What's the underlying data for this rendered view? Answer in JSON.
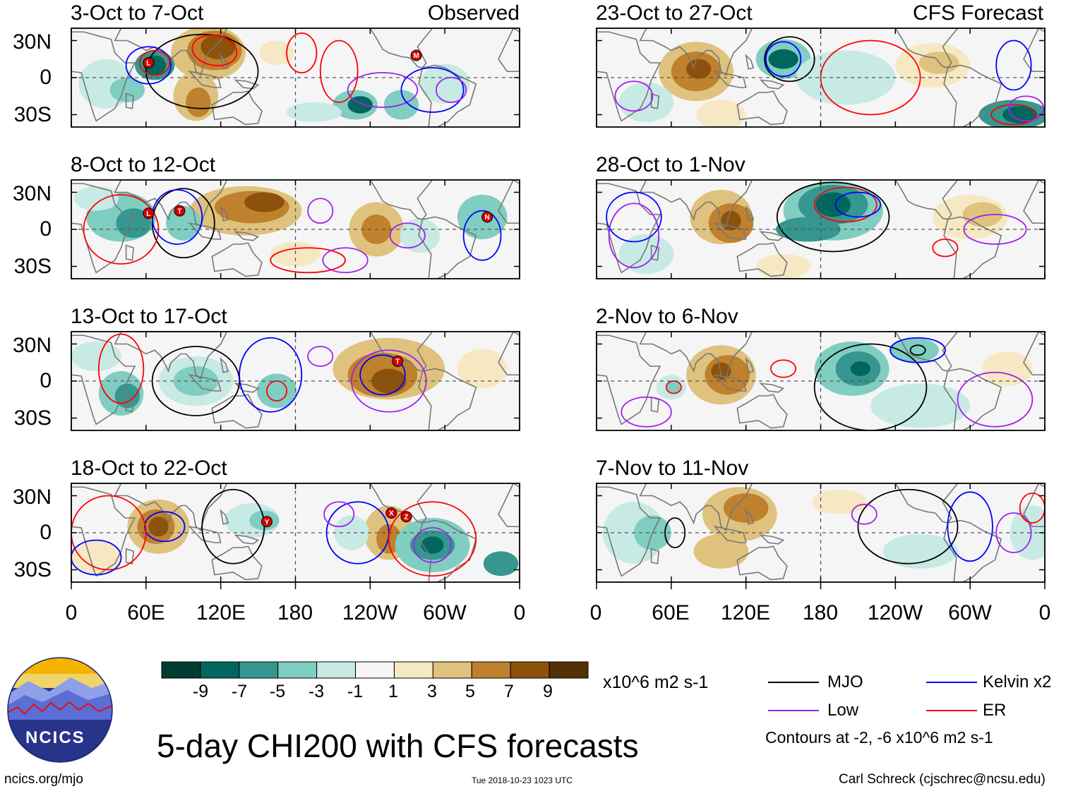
{
  "header": {
    "observed_label": "Observed",
    "forecast_label": "CFS Forecast"
  },
  "panels": [
    {
      "title": "3-Oct to 7-Oct",
      "column": "observed"
    },
    {
      "title": "8-Oct to 12-Oct",
      "column": "observed"
    },
    {
      "title": "13-Oct to 17-Oct",
      "column": "observed"
    },
    {
      "title": "18-Oct to 22-Oct",
      "column": "observed"
    },
    {
      "title": "23-Oct to 27-Oct",
      "column": "forecast"
    },
    {
      "title": "28-Oct to 1-Nov",
      "column": "forecast"
    },
    {
      "title": "2-Nov to 6-Nov",
      "column": "forecast"
    },
    {
      "title": "7-Nov to 11-Nov",
      "column": "forecast"
    }
  ],
  "axes": {
    "y_labels": [
      "30N",
      "0",
      "30S"
    ],
    "x_labels": [
      "0",
      "60E",
      "120E",
      "180",
      "120W",
      "60W",
      "0"
    ]
  },
  "colorbar": {
    "tick_labels": [
      "-9",
      "-7",
      "-5",
      "-3",
      "-1",
      "1",
      "3",
      "5",
      "7",
      "9"
    ],
    "colors": [
      "#003c30",
      "#01665e",
      "#35978f",
      "#80cdc1",
      "#c7eae5",
      "#f5f5f5",
      "#f6e8c3",
      "#dfc27d",
      "#bf812d",
      "#8c510a",
      "#543005"
    ],
    "units": "x10^6 m2 s-1"
  },
  "legend": {
    "items": [
      {
        "label": "MJO",
        "color": "#000000"
      },
      {
        "label": "Kelvin x2",
        "color": "#0000ff"
      },
      {
        "label": "Low",
        "color": "#a020f0"
      },
      {
        "label": "ER",
        "color": "#ff0000"
      }
    ],
    "contour_note": "Contours at -2, -6 x10^6 m2 s-1"
  },
  "footer": {
    "main_title": "5-day CHI200 with CFS forecasts",
    "logo_text": "NCICS",
    "url": "ncics.org/mjo",
    "timestamp": "Tue 2018-10-23 1023 UTC",
    "credit": "Carl Schreck (cjschrec@ncsu.edu)"
  },
  "storm_markers": [
    {
      "panel": 0,
      "letter": "L",
      "lon": 62,
      "lat": 12
    },
    {
      "panel": 0,
      "letter": "M",
      "lon": 277,
      "lat": 18
    },
    {
      "panel": 1,
      "letter": "L",
      "lon": 62,
      "lat": 13
    },
    {
      "panel": 1,
      "letter": "T",
      "lon": 87,
      "lat": 15
    },
    {
      "panel": 1,
      "letter": "N",
      "lon": 334,
      "lat": 10
    },
    {
      "panel": 2,
      "letter": "T",
      "lon": 262,
      "lat": 16
    },
    {
      "panel": 3,
      "letter": "Y",
      "lon": 157,
      "lat": 9
    },
    {
      "panel": 3,
      "letter": "X",
      "lon": 257,
      "lat": 16
    },
    {
      "panel": 3,
      "letter": "Z",
      "lon": 269,
      "lat": 13
    }
  ]
}
